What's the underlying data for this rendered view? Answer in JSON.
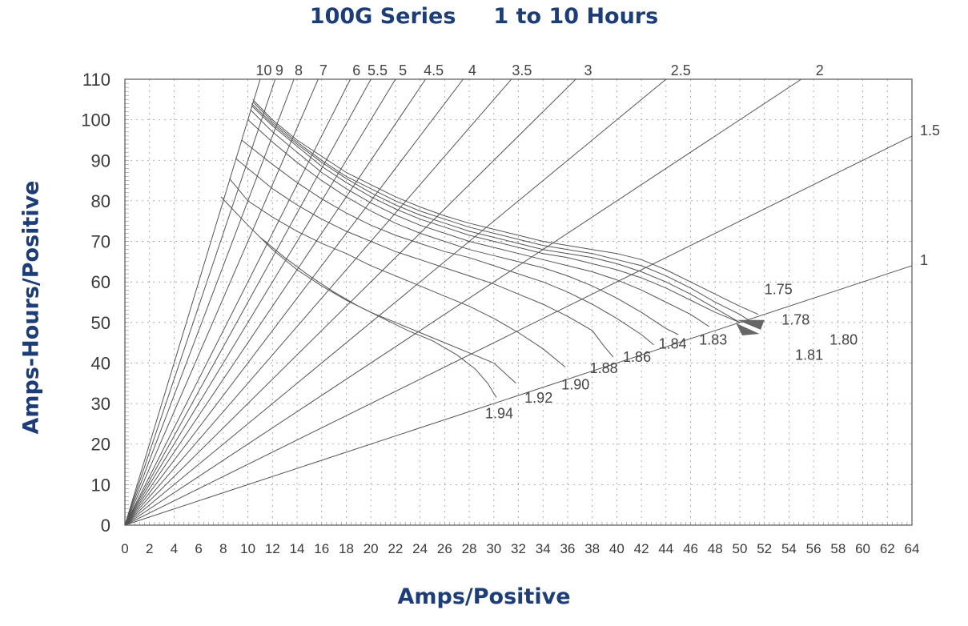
{
  "chart_data": {
    "type": "line",
    "title_series": "100G Series",
    "title_range": "1 to 10 Hours",
    "xlabel": "Amps/Positive",
    "ylabel": "Amps-Hours/Positive",
    "xlim": [
      0,
      64
    ],
    "ylim": [
      0,
      110
    ],
    "x_ticks": [
      0,
      2,
      4,
      6,
      8,
      10,
      12,
      14,
      16,
      18,
      20,
      22,
      24,
      26,
      28,
      30,
      32,
      34,
      36,
      38,
      40,
      42,
      44,
      46,
      48,
      50,
      52,
      54,
      56,
      58,
      60,
      62,
      64
    ],
    "y_ticks": [
      0,
      10,
      20,
      30,
      40,
      50,
      60,
      70,
      80,
      90,
      100,
      110
    ],
    "grid": true,
    "hour_lines": [
      {
        "label": "10",
        "hours": 10
      },
      {
        "label": "9",
        "hours": 9
      },
      {
        "label": "8",
        "hours": 8
      },
      {
        "label": "7",
        "hours": 7
      },
      {
        "label": "6",
        "hours": 6
      },
      {
        "label": "5.5",
        "hours": 5.5
      },
      {
        "label": "5",
        "hours": 5
      },
      {
        "label": "4.5",
        "hours": 4.5
      },
      {
        "label": "4",
        "hours": 4
      },
      {
        "label": "3.5",
        "hours": 3.5
      },
      {
        "label": "3",
        "hours": 3
      },
      {
        "label": "2.5",
        "hours": 2.5
      },
      {
        "label": "2",
        "hours": 2
      },
      {
        "label": "1.5",
        "hours": 1.5
      },
      {
        "label": "1",
        "hours": 1
      }
    ],
    "voltage_curves": [
      {
        "label": "1.75",
        "points": [
          [
            10.4,
            105
          ],
          [
            12,
            100
          ],
          [
            14,
            95
          ],
          [
            16,
            91
          ],
          [
            18,
            87
          ],
          [
            20,
            84
          ],
          [
            22,
            81
          ],
          [
            24,
            78.5
          ],
          [
            26,
            76.3
          ],
          [
            28,
            74.5
          ],
          [
            30,
            73
          ],
          [
            32,
            71.5
          ],
          [
            34,
            70
          ],
          [
            36,
            69
          ],
          [
            38,
            68
          ],
          [
            40,
            67
          ],
          [
            42,
            65.5
          ],
          [
            44,
            63
          ],
          [
            46,
            60
          ],
          [
            48,
            57
          ],
          [
            50,
            54
          ],
          [
            51.5,
            52
          ]
        ]
      },
      {
        "label": "1.78",
        "points": [
          [
            10.4,
            104.5
          ],
          [
            12,
            99.5
          ],
          [
            14,
            94.5
          ],
          [
            16,
            90
          ],
          [
            18,
            86
          ],
          [
            20,
            83
          ],
          [
            22,
            80
          ],
          [
            24,
            77.5
          ],
          [
            26,
            75.5
          ],
          [
            28,
            73.5
          ],
          [
            30,
            72
          ],
          [
            32,
            70.5
          ],
          [
            34,
            69
          ],
          [
            36,
            68
          ],
          [
            38,
            67
          ],
          [
            40,
            65.5
          ],
          [
            42,
            64
          ],
          [
            44,
            61.5
          ],
          [
            46,
            58.5
          ],
          [
            48,
            55
          ],
          [
            50,
            52
          ],
          [
            51,
            50
          ]
        ]
      },
      {
        "label": "1.80",
        "points": [
          [
            10.3,
            104
          ],
          [
            12,
            99
          ],
          [
            14,
            94
          ],
          [
            16,
            89.5
          ],
          [
            18,
            85.5
          ],
          [
            20,
            82
          ],
          [
            22,
            79
          ],
          [
            24,
            76.5
          ],
          [
            26,
            74.5
          ],
          [
            28,
            72.5
          ],
          [
            30,
            71
          ],
          [
            32,
            69.5
          ],
          [
            34,
            68
          ],
          [
            36,
            67
          ],
          [
            38,
            66
          ],
          [
            40,
            64.5
          ],
          [
            42,
            62.5
          ],
          [
            44,
            60
          ],
          [
            46,
            57
          ],
          [
            48,
            53.5
          ],
          [
            50,
            50
          ]
        ]
      },
      {
        "label": "1.81",
        "points": [
          [
            10.3,
            103.5
          ],
          [
            12,
            98.5
          ],
          [
            14,
            93.5
          ],
          [
            16,
            88.5
          ],
          [
            18,
            84.5
          ],
          [
            20,
            81
          ],
          [
            22,
            78
          ],
          [
            24,
            75.5
          ],
          [
            26,
            73.5
          ],
          [
            28,
            71.5
          ],
          [
            30,
            70
          ],
          [
            32,
            68.5
          ],
          [
            34,
            67
          ],
          [
            36,
            66
          ],
          [
            38,
            64.5
          ],
          [
            40,
            63
          ],
          [
            42,
            61
          ],
          [
            44,
            58.5
          ],
          [
            46,
            55.5
          ],
          [
            48,
            52.5
          ],
          [
            50,
            50
          ]
        ]
      },
      {
        "label": "1.83",
        "points": [
          [
            10.2,
            102.5
          ],
          [
            12,
            97
          ],
          [
            14,
            92
          ],
          [
            16,
            87
          ],
          [
            18,
            83
          ],
          [
            20,
            79.5
          ],
          [
            22,
            76.5
          ],
          [
            24,
            74
          ],
          [
            26,
            72
          ],
          [
            28,
            70
          ],
          [
            30,
            68.5
          ],
          [
            32,
            67
          ],
          [
            34,
            65.5
          ],
          [
            36,
            64
          ],
          [
            38,
            62.5
          ],
          [
            40,
            60.5
          ],
          [
            42,
            58
          ],
          [
            44,
            55
          ],
          [
            46,
            52
          ],
          [
            47.5,
            49
          ]
        ]
      },
      {
        "label": "1.84",
        "points": [
          [
            10,
            100
          ],
          [
            12,
            94.5
          ],
          [
            14,
            89.5
          ],
          [
            16,
            85
          ],
          [
            18,
            81
          ],
          [
            20,
            77.5
          ],
          [
            22,
            74.5
          ],
          [
            24,
            72
          ],
          [
            26,
            70
          ],
          [
            28,
            68
          ],
          [
            30,
            66.5
          ],
          [
            32,
            65
          ],
          [
            34,
            63.5
          ],
          [
            36,
            61.5
          ],
          [
            38,
            59
          ],
          [
            40,
            56
          ],
          [
            42,
            52.5
          ],
          [
            44,
            48.5
          ],
          [
            45,
            47
          ]
        ]
      },
      {
        "label": "1.86",
        "points": [
          [
            9.5,
            95
          ],
          [
            12,
            89
          ],
          [
            14,
            84.5
          ],
          [
            16,
            80.5
          ],
          [
            18,
            77
          ],
          [
            20,
            74
          ],
          [
            22,
            71.5
          ],
          [
            24,
            69.5
          ],
          [
            26,
            67.5
          ],
          [
            28,
            66
          ],
          [
            30,
            64
          ],
          [
            32,
            62
          ],
          [
            34,
            60
          ],
          [
            36,
            57.5
          ],
          [
            38,
            54.5
          ],
          [
            40,
            51
          ],
          [
            42,
            47
          ],
          [
            43,
            44.5
          ]
        ]
      },
      {
        "label": "1.88",
        "points": [
          [
            9,
            90.5
          ],
          [
            12,
            83
          ],
          [
            14,
            79
          ],
          [
            16,
            75.5
          ],
          [
            18,
            72.5
          ],
          [
            20,
            70
          ],
          [
            22,
            67.5
          ],
          [
            24,
            65.5
          ],
          [
            26,
            63.5
          ],
          [
            28,
            61.5
          ],
          [
            30,
            59.5
          ],
          [
            32,
            57
          ],
          [
            34,
            54.5
          ],
          [
            36,
            51.5
          ],
          [
            38,
            48
          ],
          [
            39,
            44
          ],
          [
            39.7,
            41.5
          ]
        ]
      },
      {
        "label": "1.90",
        "points": [
          [
            8.5,
            85.5
          ],
          [
            10,
            80
          ],
          [
            12,
            76
          ],
          [
            14,
            72.5
          ],
          [
            16,
            69.5
          ],
          [
            18,
            67
          ],
          [
            20,
            64
          ],
          [
            22,
            61.5
          ],
          [
            24,
            59
          ],
          [
            26,
            56.5
          ],
          [
            28,
            54
          ],
          [
            30,
            51
          ],
          [
            32,
            47.5
          ],
          [
            34,
            43.5
          ],
          [
            35.8,
            39
          ]
        ]
      },
      {
        "label": "1.92",
        "points": [
          [
            7.8,
            81
          ],
          [
            10,
            74
          ],
          [
            12,
            68
          ],
          [
            14,
            63
          ],
          [
            16,
            59
          ],
          [
            18,
            55.5
          ],
          [
            20,
            52.5
          ],
          [
            22,
            50
          ],
          [
            24,
            47.5
          ],
          [
            26,
            45
          ],
          [
            28,
            42.5
          ],
          [
            30,
            40
          ],
          [
            31.8,
            35
          ]
        ]
      },
      {
        "label": "1.94",
        "points": [
          [
            11,
            71
          ],
          [
            13,
            66
          ],
          [
            15,
            61.5
          ],
          [
            17,
            57.5
          ],
          [
            19,
            54
          ],
          [
            21,
            51
          ],
          [
            23,
            48
          ],
          [
            25,
            45.5
          ],
          [
            27,
            42
          ],
          [
            28.5,
            38.5
          ],
          [
            29.5,
            35
          ],
          [
            30.2,
            31.5
          ]
        ]
      }
    ],
    "voltage_labels": [
      {
        "label": "1.75",
        "x": 52,
        "y": 57
      },
      {
        "label": "1.78",
        "x": 53.4,
        "y": 49.5
      },
      {
        "label": "1.80",
        "x": 57.3,
        "y": 44.5
      },
      {
        "label": "1.81",
        "x": 54.5,
        "y": 40.8
      },
      {
        "label": "1.83",
        "x": 46.7,
        "y": 44.5
      },
      {
        "label": "1.84",
        "x": 43.4,
        "y": 43.5
      },
      {
        "label": "1.86",
        "x": 40.5,
        "y": 40.3
      },
      {
        "label": "1.88",
        "x": 37.8,
        "y": 37.5
      },
      {
        "label": "1.90",
        "x": 35.5,
        "y": 33.5
      },
      {
        "label": "1.92",
        "x": 32.5,
        "y": 30.2
      },
      {
        "label": "1.94",
        "x": 29.3,
        "y": 26.4
      }
    ]
  }
}
